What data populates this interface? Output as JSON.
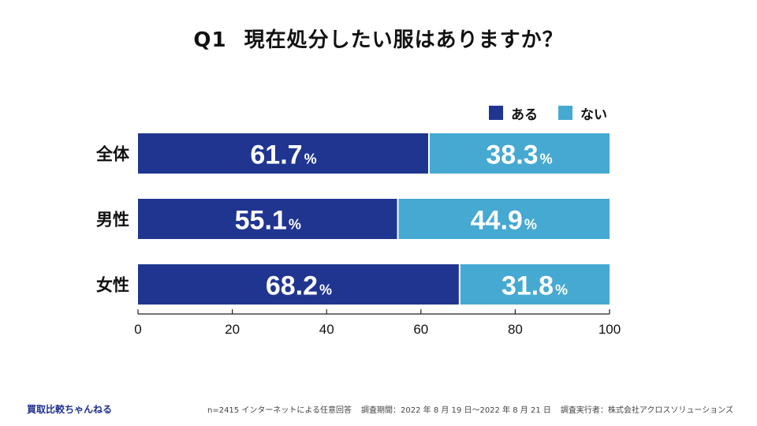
{
  "title": {
    "qnum": "Q1",
    "text": "現在処分したい服はありますか？"
  },
  "chart_data": {
    "type": "bar",
    "orientation": "horizontal",
    "stacked": true,
    "categories": [
      "全体",
      "男性",
      "女性"
    ],
    "series": [
      {
        "name": "ある",
        "values": [
          61.7,
          55.1,
          68.2
        ],
        "color": "#1f3590"
      },
      {
        "name": "ない",
        "values": [
          38.3,
          44.9,
          31.8
        ],
        "color": "#46a9d1"
      }
    ],
    "value_suffix": "%",
    "xlim": [
      0,
      100
    ],
    "xticks": [
      0,
      20,
      40,
      60,
      80,
      100
    ],
    "legend_position": "top-right",
    "xlabel": "",
    "ylabel": ""
  },
  "footer": {
    "brand": "買取比較ちゃんねる",
    "sample": "n=2415 インターネットによる任意回答",
    "period": "調査期間：2022 年 8 月 19 日〜2022 年 8 月 21 日",
    "organizer": "調査実行者：株式会社アクロスソリューションズ"
  }
}
